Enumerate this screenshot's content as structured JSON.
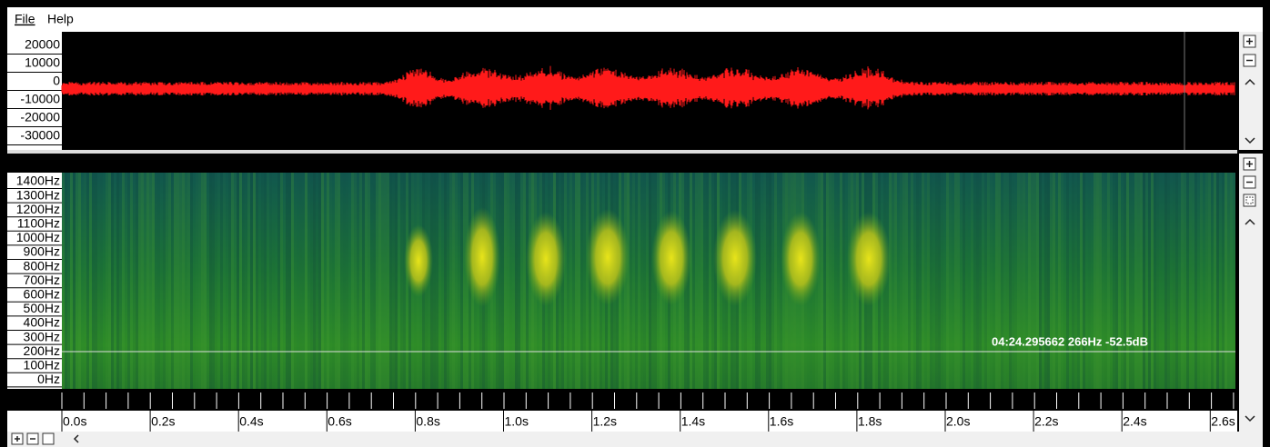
{
  "menu": [
    "File",
    "Help"
  ],
  "waveform": {
    "y_labels": [
      "20000",
      "10000",
      "0",
      "-10000",
      "-20000",
      "-30000"
    ]
  },
  "spectrogram": {
    "freq_labels": [
      "1400Hz",
      "1300Hz",
      "1200Hz",
      "1100Hz",
      "1000Hz",
      "900Hz",
      "800Hz",
      "700Hz",
      "600Hz",
      "500Hz",
      "400Hz",
      "300Hz",
      "200Hz",
      "100Hz",
      "0Hz"
    ],
    "cursor_readout": "04:24.295662 266Hz -52.5dB"
  },
  "time_axis": {
    "labels": [
      "0.0s",
      "0.2s",
      "0.4s",
      "0.6s",
      "0.8s",
      "1.0s",
      "1.2s",
      "1.4s",
      "1.6s",
      "1.8s",
      "2.0s",
      "2.2s",
      "2.4s",
      "2.6s"
    ]
  }
}
